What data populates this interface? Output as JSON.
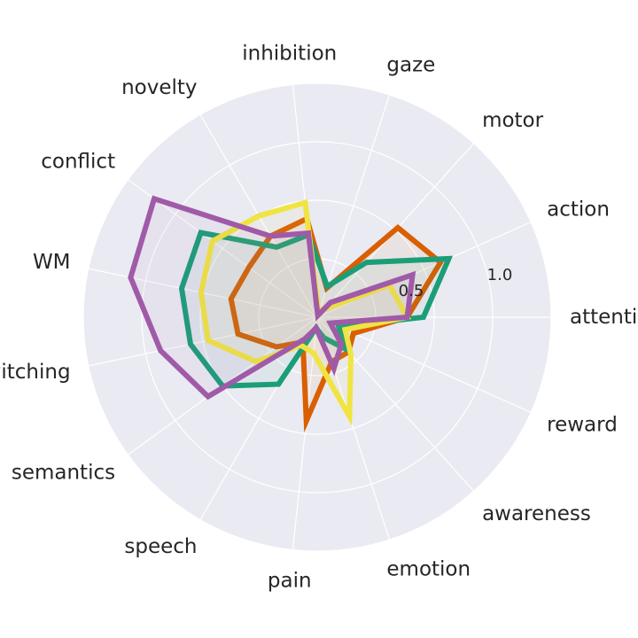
{
  "chart_data": {
    "type": "radar",
    "title": "",
    "categories": [
      "attention",
      "action",
      "motor",
      "gaze",
      "inhibition",
      "novelty",
      "conflict",
      "WM",
      "switching",
      "semantics",
      "speech",
      "pain",
      "emotion",
      "awareness",
      "reward"
    ],
    "radial_ticks": [
      0.5,
      1.0
    ],
    "radial_tick_labels": [
      "0.5",
      "1.0"
    ],
    "rlim": [
      0,
      1.3
    ],
    "grid": true,
    "legend": "none",
    "background_color": "#eaeaf2",
    "series": [
      {
        "color": "#d95f02",
        "values": [
          0.5,
          0.75,
          0.67,
          0.17,
          0.55,
          0.52,
          0.47,
          0.49,
          0.45,
          0.28,
          0.16,
          0.58,
          0.26,
          0.26,
          0.22
        ]
      },
      {
        "color": "#1b9e77",
        "values": [
          0.59,
          0.8,
          0.41,
          0.18,
          0.46,
          0.45,
          0.8,
          0.77,
          0.72,
          0.65,
          0.43,
          0.06,
          0.12,
          0.24,
          0.13
        ]
      },
      {
        "color": "#f0e442",
        "values": [
          0.5,
          0.44,
          0.06,
          0.03,
          0.64,
          0.65,
          0.72,
          0.66,
          0.62,
          0.42,
          0.18,
          0.2,
          0.58,
          0.28,
          0.17
        ]
      },
      {
        "color": "#a05aa8",
        "values": [
          0.5,
          0.58,
          0.11,
          0.01,
          0.47,
          0.52,
          1.12,
          1.06,
          0.89,
          0.75,
          0.14,
          0.06,
          0.3,
          0.2,
          0.08
        ]
      }
    ]
  }
}
